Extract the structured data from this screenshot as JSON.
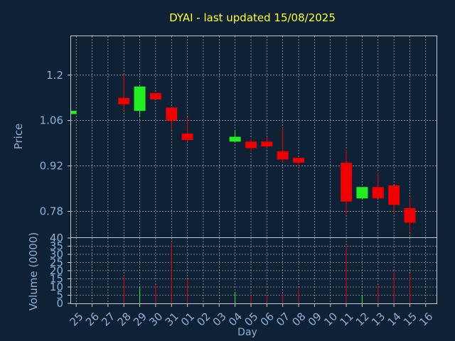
{
  "chart_data": {
    "type": "candlestick",
    "title": "DYAI - last updated 15/08/2025",
    "xlabel": "Day",
    "grid": true,
    "categories": [
      "25",
      "26",
      "27",
      "28",
      "29",
      "30",
      "31",
      "01",
      "02",
      "03",
      "04",
      "05",
      "06",
      "07",
      "08",
      "09",
      "10",
      "11",
      "12",
      "13",
      "14",
      "15",
      "16"
    ],
    "price_panel": {
      "ylabel": "Price",
      "yticks": [
        "1.2",
        "1.06",
        "0.92",
        "0.78"
      ],
      "ytick_values": [
        1.2,
        1.06,
        0.92,
        0.78
      ],
      "ylim": [
        0.7,
        1.32
      ]
    },
    "volume_panel": {
      "ylabel": "Volume (0000)",
      "yticks": [
        "40",
        "35",
        "30",
        "25",
        "20",
        "15",
        "10",
        "5",
        "0"
      ],
      "ytick_values": [
        40,
        35,
        30,
        25,
        20,
        15,
        10,
        5,
        0
      ],
      "ylim": [
        0,
        40
      ]
    },
    "candles": [
      {
        "day": "25",
        "open": 1.08,
        "close": 1.09,
        "high": 1.09,
        "low": 1.08,
        "volume": 0
      },
      {
        "day": "28",
        "open": 1.13,
        "close": 1.11,
        "high": 1.2,
        "low": 1.09,
        "volume": 17
      },
      {
        "day": "29",
        "open": 1.09,
        "close": 1.165,
        "high": 1.165,
        "low": 1.07,
        "volume": 10
      },
      {
        "day": "30",
        "open": 1.145,
        "close": 1.125,
        "high": 1.145,
        "low": 1.125,
        "volume": 11
      },
      {
        "day": "31",
        "open": 1.1,
        "close": 1.06,
        "high": 1.1,
        "low": 1.03,
        "volume": 37
      },
      {
        "day": "01",
        "open": 1.02,
        "close": 1.0,
        "high": 1.07,
        "low": 0.995,
        "volume": 15
      },
      {
        "day": "04",
        "open": 0.995,
        "close": 1.01,
        "high": 1.03,
        "low": 0.995,
        "volume": 7
      },
      {
        "day": "05",
        "open": 0.995,
        "close": 0.975,
        "high": 1.005,
        "low": 0.965,
        "volume": 5
      },
      {
        "day": "06",
        "open": 0.995,
        "close": 0.98,
        "high": 1.01,
        "low": 0.975,
        "volume": 5
      },
      {
        "day": "07",
        "open": 0.965,
        "close": 0.94,
        "high": 1.04,
        "low": 0.93,
        "volume": 6
      },
      {
        "day": "08",
        "open": 0.945,
        "close": 0.93,
        "high": 0.945,
        "low": 0.915,
        "volume": 9
      },
      {
        "day": "11",
        "open": 0.93,
        "close": 0.81,
        "high": 0.97,
        "low": 0.77,
        "volume": 35
      },
      {
        "day": "12",
        "open": 0.82,
        "close": 0.855,
        "high": 0.855,
        "low": 0.82,
        "volume": 5
      },
      {
        "day": "13",
        "open": 0.855,
        "close": 0.82,
        "high": 0.9,
        "low": 0.82,
        "volume": 11
      },
      {
        "day": "14",
        "open": 0.86,
        "close": 0.8,
        "high": 0.86,
        "low": 0.775,
        "volume": 20
      },
      {
        "day": "15",
        "open": 0.79,
        "close": 0.745,
        "high": 0.82,
        "low": 0.715,
        "volume": 18
      }
    ]
  },
  "colors": {
    "background": "#0f2235",
    "title": "#ffff33",
    "axis_text": "#8ab0d8",
    "frame": "#c8c8c8",
    "up": "#22ee22",
    "down": "#ee0000"
  }
}
